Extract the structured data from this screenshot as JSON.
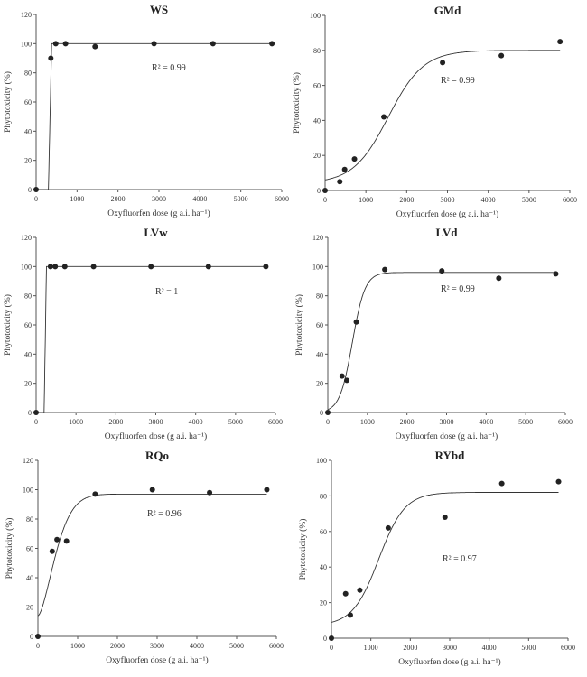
{
  "chart_data": [
    {
      "type": "scatter",
      "title": "WS",
      "xlabel": "Oxyfluorfen dose (g a.i. ha⁻¹)",
      "ylabel": "Phytotoxicity (%)",
      "xlim": [
        0,
        6000
      ],
      "ylim": [
        0,
        120
      ],
      "xticks": [
        0,
        1000,
        2000,
        3000,
        4000,
        5000,
        6000
      ],
      "yticks": [
        0,
        20,
        40,
        60,
        80,
        100,
        120
      ],
      "x": [
        0,
        360,
        480,
        720,
        1440,
        2880,
        4320,
        5760
      ],
      "y": [
        0,
        90,
        100,
        100,
        98,
        100,
        100,
        100
      ],
      "annotation": "R² = 0.99",
      "grid": false
    },
    {
      "type": "scatter",
      "title": "GMd",
      "xlabel": "Oxyfluorfen dose (g a.i. ha⁻¹)",
      "ylabel": "Phytotoxicity (%)",
      "xlim": [
        0,
        6000
      ],
      "ylim": [
        0,
        100
      ],
      "xticks": [
        0,
        1000,
        2000,
        3000,
        4000,
        5000,
        6000
      ],
      "yticks": [
        0,
        20,
        40,
        60,
        80,
        100
      ],
      "x": [
        0,
        360,
        480,
        720,
        1440,
        2880,
        4320,
        5760
      ],
      "y": [
        0,
        5,
        12,
        18,
        42,
        73,
        77,
        85
      ],
      "annotation": "R² = 0.99",
      "grid": false
    },
    {
      "type": "scatter",
      "title": "LVw",
      "xlabel": "Oxyfluorfen dose (g a.i. ha⁻¹)",
      "ylabel": "Phytotoxicity (%)",
      "xlim": [
        0,
        6000
      ],
      "ylim": [
        0,
        120
      ],
      "xticks": [
        0,
        1000,
        2000,
        3000,
        4000,
        5000,
        6000
      ],
      "yticks": [
        0,
        20,
        40,
        60,
        80,
        100,
        120
      ],
      "x": [
        0,
        360,
        480,
        720,
        1440,
        2880,
        4320,
        5760
      ],
      "y": [
        0,
        100,
        100,
        100,
        100,
        100,
        100,
        100
      ],
      "annotation": "R² = 1",
      "grid": false
    },
    {
      "type": "scatter",
      "title": "LVd",
      "xlabel": "Oxyfluorfen dose (g a.i. ha⁻¹)",
      "ylabel": "Phytotoxicity (%)",
      "xlim": [
        0,
        6000
      ],
      "ylim": [
        0,
        120
      ],
      "xticks": [
        0,
        1000,
        2000,
        3000,
        4000,
        5000,
        6000
      ],
      "yticks": [
        0,
        20,
        40,
        60,
        80,
        100,
        120
      ],
      "x": [
        0,
        360,
        480,
        720,
        1440,
        2880,
        4320,
        5760
      ],
      "y": [
        0,
        25,
        22,
        62,
        98,
        97,
        92,
        95
      ],
      "annotation": "R² = 0.99",
      "grid": false
    },
    {
      "type": "scatter",
      "title": "RQo",
      "xlabel": "Oxyfluorfen dose (g a.i. ha⁻¹)",
      "ylabel": "Phytotoxicity (%)",
      "xlim": [
        0,
        6000
      ],
      "ylim": [
        0,
        120
      ],
      "xticks": [
        0,
        1000,
        2000,
        3000,
        4000,
        5000,
        6000
      ],
      "yticks": [
        0,
        20,
        40,
        60,
        80,
        100,
        120
      ],
      "x": [
        0,
        360,
        480,
        720,
        1440,
        2880,
        4320,
        5760
      ],
      "y": [
        0,
        58,
        66,
        65,
        97,
        100,
        98,
        100
      ],
      "annotation": "R² = 0.96",
      "grid": false
    },
    {
      "type": "scatter",
      "title": "RYbd",
      "xlabel": "Oxyfluorfen dose (g a.i. ha⁻¹)",
      "ylabel": "Phytotoxicity (%)",
      "xlim": [
        0,
        6000
      ],
      "ylim": [
        0,
        100
      ],
      "xticks": [
        0,
        1000,
        2000,
        3000,
        4000,
        5000,
        6000
      ],
      "yticks": [
        0,
        20,
        40,
        60,
        80,
        100
      ],
      "x": [
        0,
        360,
        480,
        720,
        1440,
        2880,
        4320,
        5760
      ],
      "y": [
        0,
        25,
        13,
        27,
        62,
        68,
        87,
        88
      ],
      "annotation": "R² = 0.97",
      "grid": false
    }
  ]
}
